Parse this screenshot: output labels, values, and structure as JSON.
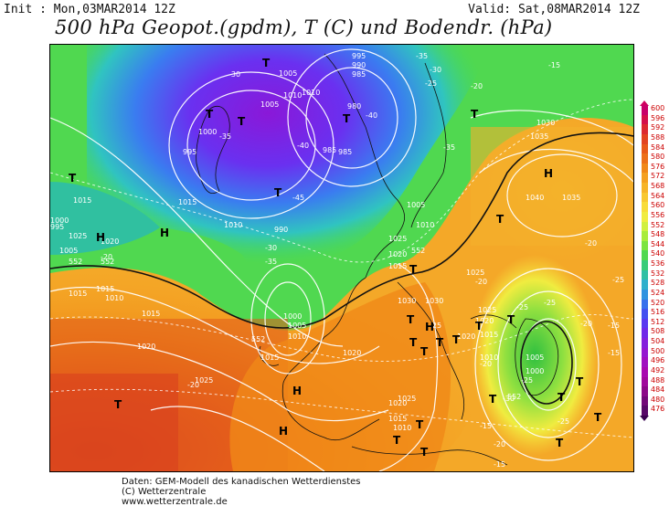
{
  "header": {
    "init": "Init : Mon,03MAR2014 12Z",
    "valid": "Valid: Sat,08MAR2014 12Z",
    "title": "500 hPa Geopot.(gpdm), T (C) und Bodendr. (hPa)"
  },
  "legend": {
    "values": [
      "600",
      "596",
      "592",
      "588",
      "584",
      "580",
      "576",
      "572",
      "568",
      "564",
      "560",
      "556",
      "552",
      "548",
      "544",
      "540",
      "536",
      "532",
      "528",
      "524",
      "520",
      "516",
      "512",
      "508",
      "504",
      "500",
      "496",
      "492",
      "488",
      "484",
      "480",
      "476"
    ],
    "colors": [
      "#c8006a",
      "#d4104a",
      "#dc2a30",
      "#e24420",
      "#e85a18",
      "#ec7018",
      "#f08818",
      "#f4a020",
      "#f6b428",
      "#f8c830",
      "#f8dc38",
      "#f0ec40",
      "#d0f040",
      "#a8ec3c",
      "#7ce440",
      "#50d850",
      "#38cc78",
      "#30c0a4",
      "#30b0cc",
      "#3094e0",
      "#3870ec",
      "#4450f0",
      "#5a38f0",
      "#7028e8",
      "#8420dc",
      "#9418d0",
      "#a010c0",
      "#a808b0",
      "#a0089c",
      "#8c0888",
      "#720878",
      "#580868"
    ]
  },
  "map_labels": {
    "isobars": [
      "1005",
      "1010",
      "995",
      "990",
      "985",
      "980",
      "1005",
      "1010",
      "1000",
      "995",
      "985",
      "1030",
      "1035",
      "1040",
      "1035",
      "1025",
      "1020",
      "1015",
      "1010",
      "1005",
      "1000",
      "995",
      "990",
      "985",
      "1030",
      "1025",
      "1020",
      "1015",
      "1010",
      "1005",
      "1000",
      "1015",
      "1020",
      "1025",
      "1015",
      "1020",
      "1025",
      "1015",
      "1015",
      "1010",
      "1005",
      "1015",
      "1010",
      "1030",
      "1020",
      "1025",
      "1020",
      "1015",
      "1010",
      "1000",
      "1005",
      "1010",
      "1015",
      "1020",
      "1025"
    ],
    "temps": [
      "-35",
      "-40",
      "-45",
      "-40",
      "-35",
      "-30",
      "-25",
      "-20",
      "-15",
      "-30",
      "-35",
      "-25",
      "-20",
      "-25",
      "-15",
      "-20",
      "-25",
      "-20",
      "-15",
      "-30",
      "-25",
      "-20",
      "-15",
      "-20",
      "-25",
      "-20",
      "-15",
      "-25",
      "-20",
      "-35",
      "-30"
    ],
    "geopot": [
      "552",
      "552",
      "552",
      "552",
      "552"
    ],
    "symbols": [
      "T",
      "T",
      "T",
      "T",
      "T",
      "H",
      "H",
      "T",
      "T",
      "H",
      "T",
      "T",
      "T",
      "T",
      "T",
      "T",
      "T",
      "T",
      "H",
      "T",
      "H",
      "T",
      "T",
      "T",
      "T",
      "T",
      "T",
      "T",
      "T",
      "H",
      "T"
    ]
  },
  "footer": {
    "line1": "Daten: GEM-Modell des kanadischen Wetterdienstes",
    "line2": "(C) Wetterzentrale",
    "line3": "www.wetterzentrale.de"
  }
}
